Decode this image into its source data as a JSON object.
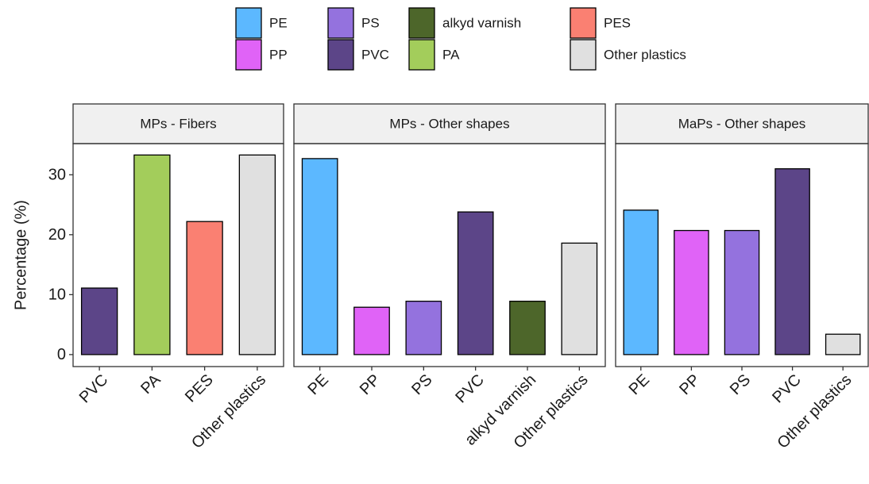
{
  "legend": {
    "items": [
      {
        "name": "PE",
        "color": "#5cb8ff"
      },
      {
        "name": "PP",
        "color": "#e063f7"
      },
      {
        "name": "PS",
        "color": "#9472de"
      },
      {
        "name": "PVC",
        "color": "#5c4588"
      },
      {
        "name": "alkyd varnish",
        "color": "#4d662a"
      },
      {
        "name": "PA",
        "color": "#a3cd5b"
      },
      {
        "name": "PES",
        "color": "#fa8072"
      },
      {
        "name": "Other plastics",
        "color": "#e0e0e0"
      }
    ]
  },
  "chart_data": [
    {
      "type": "bar",
      "title": "MPs - Fibers",
      "ylabel": "Percentage (%)",
      "categories": [
        "PVC",
        "PA",
        "PES",
        "Other plastics"
      ],
      "values": [
        11.1,
        33.3,
        22.2,
        33.3
      ],
      "colors": [
        "#5c4588",
        "#a3cd5b",
        "#fa8072",
        "#e0e0e0"
      ],
      "ylim": [
        -2,
        35.2
      ],
      "yticks": [
        0,
        10,
        20,
        30
      ]
    },
    {
      "type": "bar",
      "title": "MPs - Other shapes",
      "categories": [
        "PE",
        "PP",
        "PS",
        "PVC",
        "alkyd varnish",
        "Other plastics"
      ],
      "values": [
        32.7,
        7.9,
        8.9,
        23.8,
        8.9,
        18.6
      ],
      "colors": [
        "#5cb8ff",
        "#e063f7",
        "#9472de",
        "#5c4588",
        "#4d662a",
        "#e0e0e0"
      ],
      "ylim": [
        -2,
        35.2
      ]
    },
    {
      "type": "bar",
      "title": "MaPs - Other shapes",
      "categories": [
        "PE",
        "PP",
        "PS",
        "PVC",
        "Other plastics"
      ],
      "values": [
        24.1,
        20.7,
        20.7,
        31.0,
        3.4
      ],
      "colors": [
        "#5cb8ff",
        "#e063f7",
        "#9472de",
        "#5c4588",
        "#e0e0e0"
      ],
      "ylim": [
        -2,
        35.2
      ]
    }
  ]
}
